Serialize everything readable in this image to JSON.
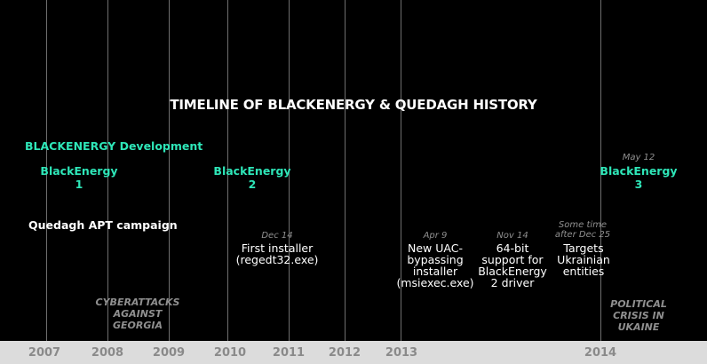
{
  "title": "TIMELINE OF BLACKENERGY & QUEDAGH HISTORY",
  "tracks": {
    "blackenergy": "BLACKENERGY Development",
    "quedagh": "Quedagh APT campaign"
  },
  "versions": [
    {
      "date": "",
      "label": "BlackEnergy\n1"
    },
    {
      "date": "",
      "label": "BlackEnergy\n2"
    },
    {
      "date": "May 12",
      "label": "BlackEnergy\n3"
    }
  ],
  "events": [
    {
      "date": "Dec 14",
      "text": "First installer\n(regedt32.exe)"
    },
    {
      "date": "Apr 9",
      "text": "New UAC-\nbypassing\ninstaller\n(msiexec.exe)"
    },
    {
      "date": "Nov 14",
      "text": "64-bit\nsupport for\nBlackEnergy\n2 driver"
    },
    {
      "date": "Some time\nafter Dec 25",
      "text": "Targets\nUkrainian\nentities"
    }
  ],
  "history": [
    {
      "text": "CYBERATTACKS\nAGAINST\nGEORGIA"
    },
    {
      "text": "POLITICAL\nCRISIS IN\nUKAINE"
    }
  ],
  "years": [
    "2007",
    "2008",
    "2009",
    "2010",
    "2011",
    "2012",
    "2013",
    "2014"
  ],
  "colors": {
    "accent": "#2ee6b8",
    "muted": "#8f8f8f",
    "axis": "#dcdcdc",
    "background": "#000000"
  }
}
